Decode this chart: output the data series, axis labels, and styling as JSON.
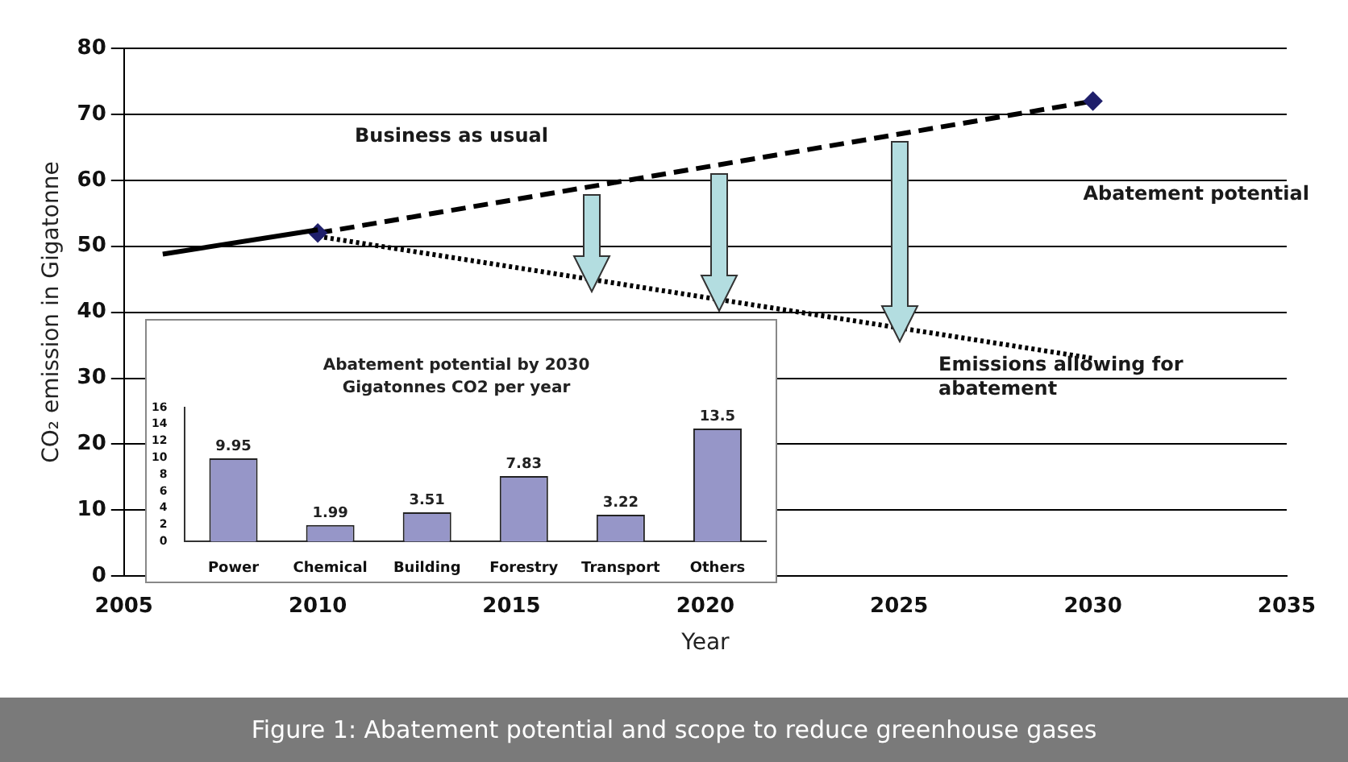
{
  "chart_data": [
    {
      "type": "line",
      "xlabel": "Year",
      "ylabel": "CO₂ emission in Gigatonne",
      "xlim": [
        2005,
        2035
      ],
      "xticks": [
        2005,
        2010,
        2015,
        2020,
        2025,
        2030,
        2035
      ],
      "ylim": [
        0,
        80
      ],
      "yticks": [
        0,
        10,
        20,
        30,
        40,
        50,
        60,
        70,
        80
      ],
      "grid": "y",
      "legend": false,
      "series": [
        {
          "x": [
            2006,
            2010
          ],
          "values": [
            48.8,
            52.5
          ],
          "color": "#000000",
          "line_style": "solid"
        },
        {
          "x": [
            2010,
            2030
          ],
          "values": [
            52,
            72
          ],
          "color": "#000000",
          "line_style": "dashed",
          "marker": "diamond"
        },
        {
          "x": [
            2010,
            2030
          ],
          "values": [
            51.5,
            33
          ],
          "color": "#000000",
          "line_style": "dotted"
        }
      ],
      "annotations": [
        "Business as usual",
        "Abatement potential",
        "Emissions allowing for abatement",
        "Figure 1: Abatement potential and scope to reduce greenhouse gases"
      ]
    },
    {
      "type": "bar",
      "title": "Abatement potential by 2030",
      "subtitle": "Gigatonnes CO2 per year",
      "categories": [
        "Power",
        "Chemical",
        "Building",
        "Forestry",
        "Transport",
        "Others"
      ],
      "values": [
        9.95,
        1.99,
        3.51,
        7.83,
        3.22,
        13.5
      ],
      "color": "#9696c8",
      "ylim": [
        0,
        16
      ],
      "yticks": [
        0,
        2,
        4,
        6,
        8,
        10,
        12,
        14,
        16
      ],
      "data_labels": true,
      "legend": false
    }
  ]
}
